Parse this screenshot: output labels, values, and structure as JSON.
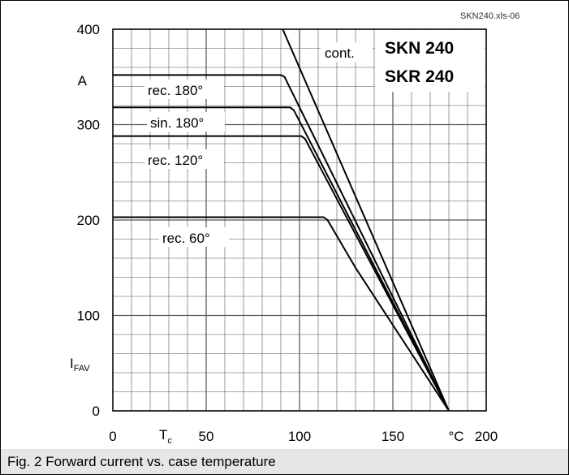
{
  "figure": {
    "source_tag": "SKN240.xls-06",
    "caption": "Fig. 2 Forward current vs. case temperature"
  },
  "chart_data": {
    "type": "line",
    "title": "",
    "product_labels": [
      "SKN 240",
      "SKR 240"
    ],
    "xlabel": "T",
    "xlabel_subscript": "c",
    "xunit": "°C",
    "ylabel": "I",
    "ylabel_subscript": "FAV",
    "yunit": "A",
    "xlim": [
      0,
      200
    ],
    "ylim": [
      0,
      400
    ],
    "x_ticks": [
      "0",
      "50",
      "100",
      "150",
      "200"
    ],
    "y_ticks": [
      "0",
      "100",
      "200",
      "300",
      "400"
    ],
    "grid": true,
    "series": [
      {
        "name": "cont.",
        "points": [
          [
            91,
            400
          ],
          [
            180,
            0
          ]
        ]
      },
      {
        "name": "rec. 180°",
        "points": [
          [
            0,
            352
          ],
          [
            90,
            352
          ],
          [
            92,
            350
          ],
          [
            180,
            0
          ]
        ]
      },
      {
        "name": "sin. 180°",
        "points": [
          [
            0,
            318
          ],
          [
            95,
            318
          ],
          [
            97,
            315
          ],
          [
            180,
            0
          ]
        ]
      },
      {
        "name": "rec. 120°",
        "points": [
          [
            0,
            288
          ],
          [
            101,
            288
          ],
          [
            103,
            285
          ],
          [
            180,
            0
          ]
        ]
      },
      {
        "name": "rec. 60°",
        "points": [
          [
            0,
            203
          ],
          [
            113,
            203
          ],
          [
            115,
            200
          ],
          [
            130,
            150
          ],
          [
            180,
            0
          ]
        ]
      }
    ]
  }
}
